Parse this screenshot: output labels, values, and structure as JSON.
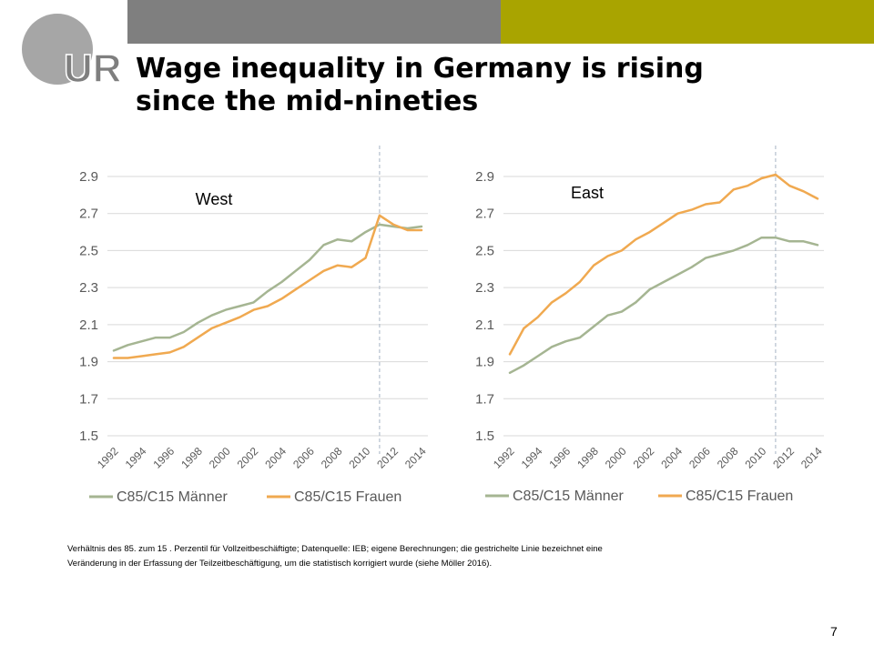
{
  "header": {
    "logo_text": "UR",
    "title_line1": "Wage inequality in Germany is rising",
    "title_line2": "since the mid-nineties"
  },
  "colors": {
    "header_gray": "#7f7f7f",
    "header_olive": "#a9a400",
    "maenner": "#a5b592",
    "frauen": "#f0a950",
    "grid": "#d9d9d9",
    "dashed_line": "#a6b3c4"
  },
  "chart_data": [
    {
      "type": "line",
      "title": "West",
      "x": [
        1992,
        1993,
        1994,
        1995,
        1996,
        1997,
        1998,
        1999,
        2000,
        2001,
        2002,
        2003,
        2004,
        2005,
        2006,
        2007,
        2008,
        2009,
        2010,
        2011,
        2012,
        2013,
        2014
      ],
      "x_tick_labels": [
        "1992",
        "1994",
        "1996",
        "1998",
        "2000",
        "2002",
        "2004",
        "2006",
        "2008",
        "2010",
        "2012",
        "2014"
      ],
      "y_ticks": [
        "1.5",
        "1.7",
        "1.9",
        "2.1",
        "2.3",
        "2.5",
        "2.7",
        "2.9"
      ],
      "ylim": [
        1.5,
        2.9
      ],
      "grid": true,
      "legend_position": "bottom",
      "vline_x": 2011,
      "series": [
        {
          "name": "C85/C15 Männer",
          "color": "#a5b592",
          "values": [
            1.96,
            1.99,
            2.01,
            2.03,
            2.03,
            2.06,
            2.11,
            2.15,
            2.18,
            2.2,
            2.22,
            2.28,
            2.33,
            2.39,
            2.45,
            2.53,
            2.56,
            2.55,
            2.6,
            2.64,
            2.63,
            2.62,
            2.63
          ]
        },
        {
          "name": "C85/C15 Frauen",
          "color": "#f0a950",
          "values": [
            1.92,
            1.92,
            1.93,
            1.94,
            1.95,
            1.98,
            2.03,
            2.08,
            2.11,
            2.14,
            2.18,
            2.2,
            2.24,
            2.29,
            2.34,
            2.39,
            2.42,
            2.41,
            2.46,
            2.69,
            2.64,
            2.61,
            2.61
          ]
        }
      ]
    },
    {
      "type": "line",
      "title": "East",
      "x": [
        1992,
        1993,
        1994,
        1995,
        1996,
        1997,
        1998,
        1999,
        2000,
        2001,
        2002,
        2003,
        2004,
        2005,
        2006,
        2007,
        2008,
        2009,
        2010,
        2011,
        2012,
        2013,
        2014
      ],
      "x_tick_labels": [
        "1992",
        "1994",
        "1996",
        "1998",
        "2000",
        "2002",
        "2004",
        "2006",
        "2008",
        "2010",
        "2012",
        "2014"
      ],
      "y_ticks": [
        "1.5",
        "1.7",
        "1.9",
        "2.1",
        "2.3",
        "2.5",
        "2.7",
        "2.9"
      ],
      "ylim": [
        1.5,
        2.9
      ],
      "grid": true,
      "legend_position": "bottom",
      "vline_x": 2011,
      "series": [
        {
          "name": "C85/C15 Männer",
          "color": "#a5b592",
          "values": [
            1.84,
            1.88,
            1.93,
            1.98,
            2.01,
            2.03,
            2.09,
            2.15,
            2.17,
            2.22,
            2.29,
            2.33,
            2.37,
            2.41,
            2.46,
            2.48,
            2.5,
            2.53,
            2.57,
            2.57,
            2.55,
            2.55,
            2.53
          ]
        },
        {
          "name": "C85/C15 Frauen",
          "color": "#f0a950",
          "values": [
            1.94,
            2.08,
            2.14,
            2.22,
            2.27,
            2.33,
            2.42,
            2.47,
            2.5,
            2.56,
            2.6,
            2.65,
            2.7,
            2.72,
            2.75,
            2.76,
            2.83,
            2.85,
            2.89,
            2.91,
            2.85,
            2.82,
            2.78
          ]
        }
      ]
    }
  ],
  "footnote": {
    "line1": "Verhältnis des 85. zum 15 . Perzentil für Vollzeitbeschäftigte; Datenquelle: IEB; eigene Berechnungen; die gestrichelte Linie bezeichnet eine",
    "line2": "Veränderung in der Erfassung der Teilzeitbeschäftigung, um die statistisch korrigiert wurde (siehe Möller 2016)."
  },
  "page_number": "7"
}
